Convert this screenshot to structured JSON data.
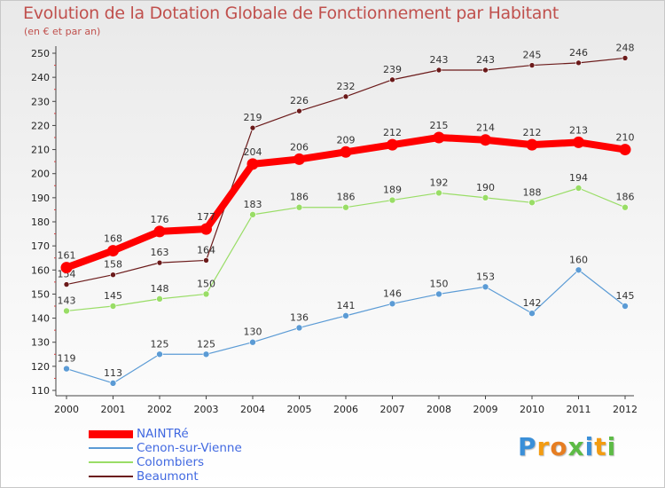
{
  "header": {
    "title": "Evolution de la Dotation Globale de Fonctionnement par Habitant",
    "subtitle": "(en € et par an)"
  },
  "colors": {
    "nainre": "#ff0000",
    "cenon": "#5b9bd5",
    "colombiers": "#99dd66",
    "beaumont": "#6b1a1a",
    "text_accent": "#c0504d",
    "legend_text": "#4169e1"
  },
  "logo": {
    "letters": [
      "P",
      "r",
      "o",
      "x",
      "i",
      "t",
      "i"
    ],
    "colors": [
      "#3a8fd8",
      "#f39c12",
      "#e67e22",
      "#5dbb46",
      "#3a8fd8",
      "#f39c12",
      "#5dbb46"
    ]
  },
  "chart_data": {
    "type": "line",
    "title": "Evolution de la Dotation Globale de Fonctionnement par Habitant",
    "subtitle": "(en € et par an)",
    "x": [
      "2000",
      "2001",
      "2002",
      "2003",
      "2004",
      "2005",
      "2006",
      "2007",
      "2008",
      "2009",
      "2010",
      "2011",
      "2012"
    ],
    "ylim": [
      110,
      250
    ],
    "yticks": [
      110,
      120,
      130,
      140,
      150,
      160,
      170,
      180,
      190,
      200,
      210,
      220,
      230,
      240,
      250
    ],
    "grid": false,
    "legend_position": "bottom-left",
    "series": [
      {
        "name": "Beaumont",
        "color": "#6b1a1a",
        "values": [
          154,
          158,
          163,
          164,
          219,
          226,
          232,
          239,
          243,
          243,
          245,
          246,
          248
        ]
      },
      {
        "name": "Colombiers",
        "color": "#99dd66",
        "values": [
          143,
          145,
          148,
          150,
          183,
          186,
          186,
          189,
          192,
          190,
          188,
          194,
          186
        ]
      },
      {
        "name": "Cenon-sur-Vienne",
        "color": "#5b9bd5",
        "values": [
          119,
          113,
          125,
          125,
          130,
          136,
          141,
          146,
          150,
          153,
          142,
          160,
          145
        ]
      },
      {
        "name": "NAINTRé",
        "color": "#ff0000",
        "values": [
          161,
          168,
          176,
          177,
          204,
          206,
          209,
          212,
          215,
          214,
          212,
          213,
          210
        ]
      }
    ]
  },
  "legend": {
    "items": [
      {
        "label": "NAINTRé",
        "color": "#ff0000",
        "thickness": 9
      },
      {
        "label": "Cenon-sur-Vienne",
        "color": "#5b9bd5",
        "thickness": 2
      },
      {
        "label": "Colombiers",
        "color": "#99dd66",
        "thickness": 2
      },
      {
        "label": "Beaumont",
        "color": "#6b1a1a",
        "thickness": 2
      }
    ]
  }
}
